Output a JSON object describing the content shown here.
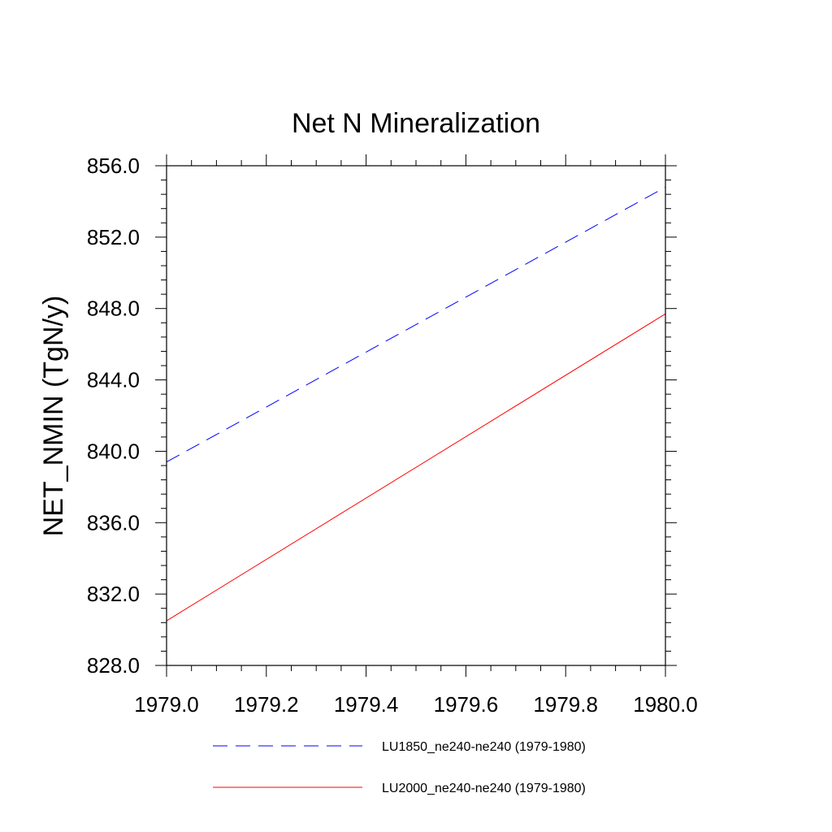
{
  "chart_data": {
    "type": "line",
    "title": "Net N Mineralization",
    "xlabel": "",
    "ylabel": "NET_NMIN  (TgN/y)",
    "xlim": [
      1979.0,
      1980.0
    ],
    "ylim": [
      828.0,
      856.0
    ],
    "x_ticks": [
      1979.0,
      1979.2,
      1979.4,
      1979.6,
      1979.8,
      1980.0
    ],
    "x_tick_labels": [
      "1979.0",
      "1979.2",
      "1979.4",
      "1979.6",
      "1979.8",
      "1980.0"
    ],
    "y_ticks": [
      828.0,
      832.0,
      836.0,
      840.0,
      844.0,
      848.0,
      852.0,
      856.0
    ],
    "y_tick_labels": [
      "828.0",
      "832.0",
      "836.0",
      "840.0",
      "844.0",
      "848.0",
      "852.0",
      "856.0"
    ],
    "x_minor_step": 0.05,
    "y_minor_step": 0.8,
    "grid": false,
    "legend_position": "bottom",
    "series": [
      {
        "name": "LU1850_ne240-ne240 (1979-1980)",
        "x": [
          1979.0,
          1980.0
        ],
        "values": [
          839.4,
          854.8
        ],
        "color": "#0000ff",
        "dash": "dashed"
      },
      {
        "name": "LU2000_ne240-ne240 (1979-1980)",
        "x": [
          1979.0,
          1980.0
        ],
        "values": [
          830.5,
          847.7
        ],
        "color": "#ff0000",
        "dash": "solid"
      }
    ]
  }
}
